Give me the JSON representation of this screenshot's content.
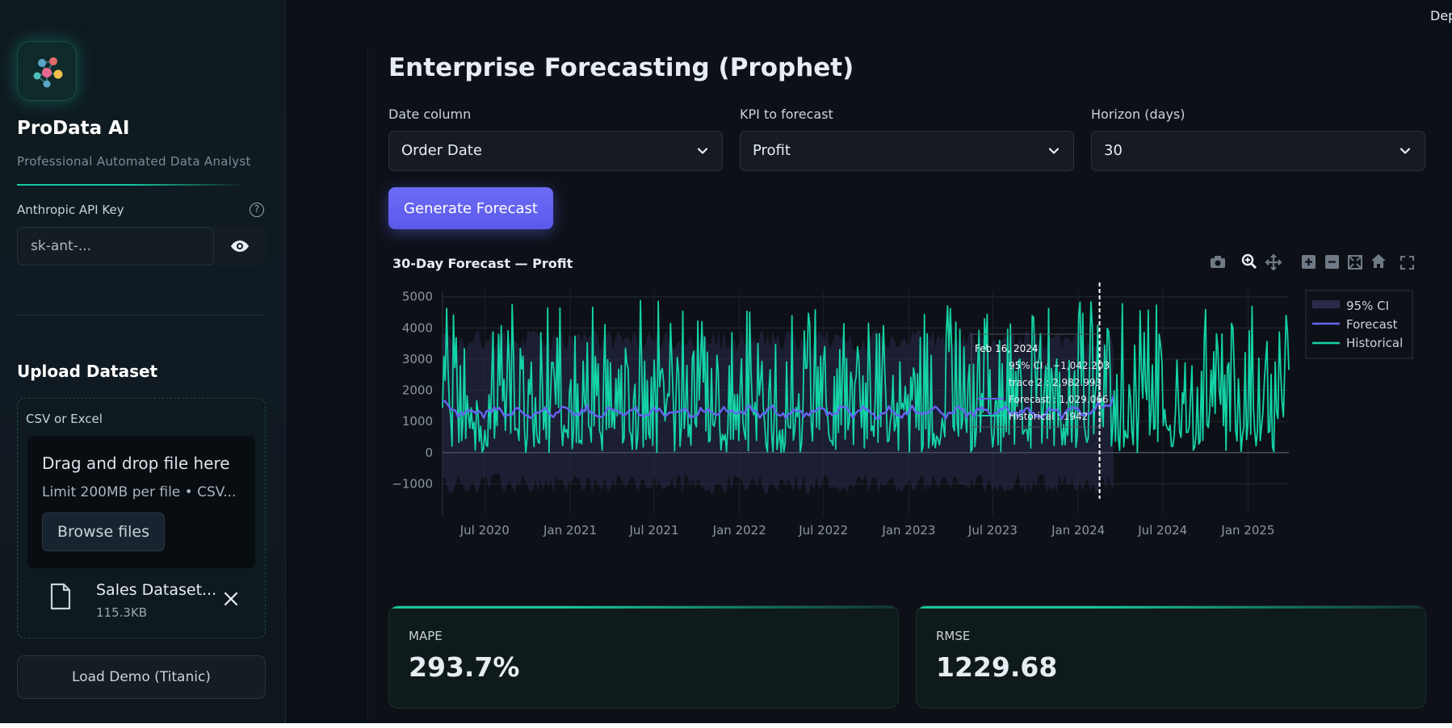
{
  "header": {
    "deploy_label": "Dep"
  },
  "sidebar": {
    "brand_title": "ProData AI",
    "brand_subtitle": "Professional Automated Data Analyst",
    "api_key": {
      "label": "Anthropic API Key",
      "placeholder": "sk-ant-...",
      "value": ""
    },
    "upload": {
      "title": "Upload Dataset",
      "label": "CSV or Excel",
      "drop_title": "Drag and drop file here",
      "drop_limit": "Limit 200MB per file • CSV...",
      "browse_label": "Browse files",
      "file_name": "Sales Dataset...",
      "file_size": "115.3KB"
    },
    "demo_button": "Load Demo (Titanic)"
  },
  "main": {
    "title": "Enterprise Forecasting (Prophet)",
    "controls": {
      "date_column": {
        "label": "Date column",
        "value": "Order Date"
      },
      "kpi": {
        "label": "KPI to forecast",
        "value": "Profit"
      },
      "horizon": {
        "label": "Horizon (days)",
        "value": "30"
      }
    },
    "generate_button": "Generate Forecast",
    "metrics": [
      {
        "label": "MAPE",
        "value": "293.7%"
      },
      {
        "label": "RMSE",
        "value": "1229.68"
      }
    ]
  },
  "colors": {
    "historical": "#14d3a6",
    "forecast": "#6366f1",
    "ci": "#2a2a4a",
    "accent": "#14c89f",
    "button": "#6366f1"
  },
  "icons": [
    "camera-icon",
    "zoom-icon",
    "pan-icon",
    "zoom-in-icon",
    "zoom-out-icon",
    "autoscale-icon",
    "reset-axes-icon",
    "fullscreen-icon",
    "eye-icon",
    "help-icon",
    "file-icon",
    "close-icon",
    "chevron-down-icon"
  ],
  "chart_data": {
    "type": "line",
    "title": "30-Day Forecast — Profit",
    "xlabel": "",
    "ylabel": "",
    "ylim": [
      -2000,
      5200
    ],
    "xlim": [
      "2020-04-01",
      "2025-03-30"
    ],
    "y_ticks": [
      -1000,
      0,
      1000,
      2000,
      3000,
      4000,
      5000
    ],
    "x_ticks": [
      "Jul 2020",
      "Jan 2021",
      "Jul 2021",
      "Jan 2022",
      "Jul 2022",
      "Jan 2023",
      "Jul 2023",
      "Jan 2024",
      "Jul 2024",
      "Jan 2025"
    ],
    "x_tick_dates": [
      "2020-07-01",
      "2021-01-01",
      "2021-07-01",
      "2022-01-01",
      "2022-07-01",
      "2023-01-01",
      "2023-07-01",
      "2024-01-01",
      "2024-07-01",
      "2025-01-01"
    ],
    "grid": true,
    "legend": {
      "placement": "top-right",
      "entries": [
        "95% CI",
        "Forecast",
        "Historical"
      ]
    },
    "series": [
      {
        "name": "Historical",
        "x_range": [
          "2020-04-01",
          "2025-03-30"
        ],
        "y_min": 0,
        "y_max": 4900,
        "typical_range": [
          0,
          4800
        ]
      },
      {
        "name": "Forecast",
        "x_range": [
          "2020-04-01",
          "2024-03-17"
        ],
        "y_approx": 1300,
        "y_range": [
          950,
          1950
        ]
      },
      {
        "name": "95% CI",
        "x_range": [
          "2020-04-01",
          "2024-03-17"
        ],
        "upper_approx": 3600,
        "lower_approx": -1000
      }
    ],
    "annotation": {
      "hover_date": "2024-02-16",
      "hover_label": "Feb 16, 2024",
      "lines": [
        "95% CI : −1,042.203",
        "trace 2 : 2,982.993",
        "Forecast : 1,029.066",
        "Historical : 1942"
      ]
    }
  }
}
